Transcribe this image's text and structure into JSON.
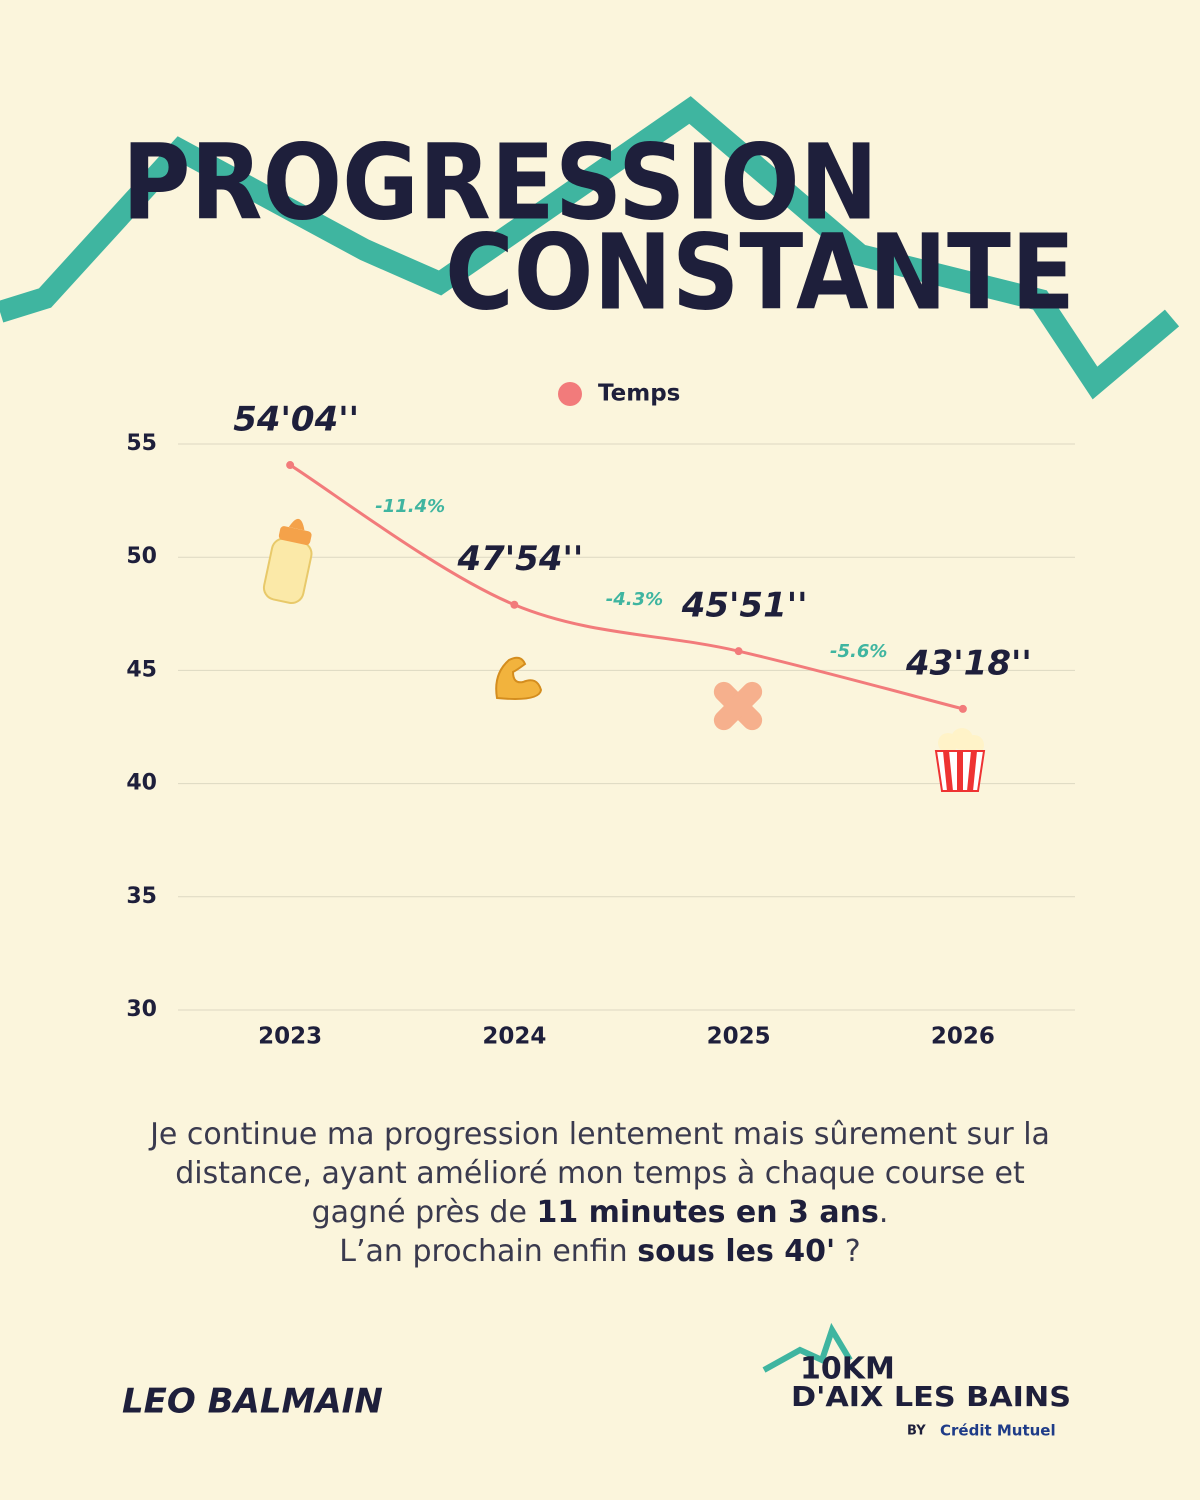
{
  "header": {
    "title_lines": [
      "PROGRESSION",
      "CONSTANTE"
    ]
  },
  "chart_data": {
    "type": "line",
    "categories": [
      "2023",
      "2024",
      "2025",
      "2026"
    ],
    "series": [
      {
        "name": "Temps",
        "color": "#f27b7b",
        "values": [
          54.07,
          47.9,
          45.85,
          43.3
        ],
        "value_labels": [
          "54'04''",
          "47'54''",
          "45'51''",
          "43'18''"
        ]
      }
    ],
    "annotations": [
      "-11.4%",
      "-4.3%",
      "-5.6%"
    ],
    "ylim": [
      30,
      55
    ],
    "yticks": [
      30,
      35,
      40,
      45,
      50,
      55
    ],
    "grid": true,
    "legend": "top"
  },
  "description": [
    [
      {
        "text": "Je continue ma progression lentement mais sûrement sur la",
        "bold": false
      }
    ],
    [
      {
        "text": "distance, ayant amélioré mon temps à chaque course et",
        "bold": false
      }
    ],
    [
      {
        "text": "gagné près de ",
        "bold": false
      },
      {
        "text": "11 minutes en 3 ans",
        "bold": true
      },
      {
        "text": ".",
        "bold": false
      }
    ],
    [
      {
        "text": "L’an prochain enfin ",
        "bold": false
      },
      {
        "text": "sous les 40'",
        "bold": true
      },
      {
        "text": " ?",
        "bold": false
      }
    ]
  ],
  "footer": {
    "author": "LEO BALMAIN",
    "logo": {
      "line1": "10KM",
      "line2": "D'AIX LES BAINS",
      "by": "BY",
      "sponsor": "Crédit Mutuel"
    }
  }
}
